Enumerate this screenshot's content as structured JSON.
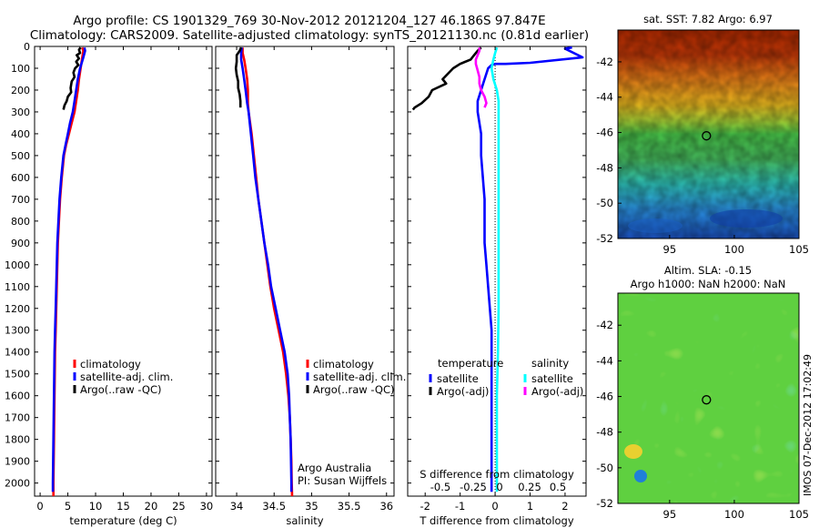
{
  "header": {
    "line1": "Argo profile: CS 1901329_769 30-Nov-2012 20121204_127 46.186S 97.847E",
    "line2": "Climatology: CARS2009. Satellite-adjusted climatology: synTS_20121130.nc (0.81d earlier)"
  },
  "side_caption": "IMOS 07-Dec-2012 17:02:49",
  "map_sst": {
    "title": "sat. SST: 7.82 Argo: 6.97",
    "xticks": [
      95,
      100,
      105
    ],
    "yticks": [
      -42,
      -44,
      -46,
      -48,
      -50,
      -52
    ],
    "xlim": [
      91,
      105
    ],
    "ylim": [
      -52,
      -40.2
    ],
    "float": {
      "lon": 97.847,
      "lat": -46.186
    },
    "colors": {
      "warm": "#b22a00",
      "orange": "#f08a1a",
      "yellow": "#f0d020",
      "green": "#49c84a",
      "cyan": "#2fc8c0",
      "blue": "#1a6fd8"
    }
  },
  "map_sla": {
    "title1": "Altim. SLA: -0.15",
    "title2": "Argo h1000: NaN h2000: NaN",
    "xticks": [
      95,
      100,
      105
    ],
    "yticks": [
      -42,
      -44,
      -46,
      -48,
      -50,
      -52
    ],
    "xlim": [
      91,
      105
    ],
    "ylim": [
      -52,
      -40.2
    ],
    "float": {
      "lon": 97.847,
      "lat": -46.186
    },
    "colors": {
      "green": "#5fd040",
      "yellow": "#e8e030",
      "cyan": "#38c8c0",
      "blue": "#2080d8"
    }
  },
  "chart_data": [
    {
      "type": "line",
      "name": "temperature",
      "xlabel": "temperature (deg C)",
      "xlim": [
        -1,
        31
      ],
      "ylim": [
        2060,
        0
      ],
      "xticks": [
        0,
        5,
        10,
        15,
        20,
        25,
        30
      ],
      "yticks": [
        0,
        100,
        200,
        300,
        400,
        500,
        600,
        700,
        800,
        900,
        1000,
        1100,
        1200,
        1300,
        1400,
        1500,
        1600,
        1700,
        1800,
        1900,
        2000
      ],
      "legend": [
        "climatology",
        "satellite-adj. clim.",
        "Argo(..raw -QC)"
      ],
      "series": [
        {
          "name": "climatology",
          "color": "#ff0000",
          "points": [
            [
              7.6,
              5
            ],
            [
              7.8,
              20
            ],
            [
              7.6,
              50
            ],
            [
              7.3,
              100
            ],
            [
              7.0,
              150
            ],
            [
              6.8,
              200
            ],
            [
              6.5,
              250
            ],
            [
              6.2,
              300
            ],
            [
              5.7,
              350
            ],
            [
              5.2,
              400
            ],
            [
              4.7,
              450
            ],
            [
              4.3,
              500
            ],
            [
              3.9,
              600
            ],
            [
              3.6,
              700
            ],
            [
              3.4,
              800
            ],
            [
              3.2,
              900
            ],
            [
              3.1,
              1000
            ],
            [
              3.0,
              1100
            ],
            [
              2.9,
              1200
            ],
            [
              2.8,
              1300
            ],
            [
              2.7,
              1400
            ],
            [
              2.65,
              1500
            ],
            [
              2.6,
              1600
            ],
            [
              2.55,
              1700
            ],
            [
              2.5,
              1800
            ],
            [
              2.45,
              1900
            ],
            [
              2.4,
              2000
            ],
            [
              2.4,
              2060
            ]
          ]
        },
        {
          "name": "satellite-adj. clim.",
          "color": "#0000ff",
          "points": [
            [
              8.0,
              5
            ],
            [
              8.1,
              20
            ],
            [
              7.8,
              50
            ],
            [
              7.2,
              100
            ],
            [
              6.8,
              150
            ],
            [
              6.5,
              200
            ],
            [
              6.2,
              250
            ],
            [
              5.9,
              300
            ],
            [
              5.4,
              350
            ],
            [
              5.0,
              400
            ],
            [
              4.6,
              450
            ],
            [
              4.2,
              500
            ],
            [
              3.8,
              600
            ],
            [
              3.5,
              700
            ],
            [
              3.3,
              800
            ],
            [
              3.1,
              900
            ],
            [
              3.0,
              1000
            ],
            [
              2.9,
              1100
            ],
            [
              2.8,
              1200
            ],
            [
              2.7,
              1300
            ],
            [
              2.6,
              1400
            ],
            [
              2.55,
              1500
            ],
            [
              2.5,
              1600
            ],
            [
              2.45,
              1700
            ],
            [
              2.4,
              1800
            ],
            [
              2.35,
              1900
            ],
            [
              2.3,
              2000
            ],
            [
              2.3,
              2040
            ]
          ]
        },
        {
          "name": "Argo(..raw -QC)",
          "color": "#000000",
          "points": [
            [
              7.3,
              5
            ],
            [
              7.0,
              15
            ],
            [
              7.2,
              30
            ],
            [
              6.6,
              40
            ],
            [
              7.0,
              55
            ],
            [
              6.5,
              70
            ],
            [
              6.9,
              85
            ],
            [
              6.3,
              100
            ],
            [
              6.0,
              120
            ],
            [
              6.2,
              140
            ],
            [
              5.7,
              160
            ],
            [
              5.5,
              190
            ],
            [
              5.6,
              210
            ],
            [
              5.0,
              230
            ],
            [
              4.8,
              250
            ],
            [
              4.4,
              270
            ],
            [
              4.2,
              290
            ]
          ]
        }
      ]
    },
    {
      "type": "line",
      "name": "salinity",
      "xlabel": "salinity",
      "xlim": [
        33.72,
        36.1
      ],
      "ylim": [
        2060,
        0
      ],
      "xticks": [
        34,
        34.5,
        35,
        35.5,
        36
      ],
      "legend": [
        "climatology",
        "satellite-adj. clim.",
        "Argo(..raw -QC)"
      ],
      "annotation": [
        "Argo Australia",
        "PI: Susan Wijffels"
      ],
      "series": [
        {
          "name": "climatology",
          "color": "#ff0000",
          "points": [
            [
              34.08,
              5
            ],
            [
              34.08,
              30
            ],
            [
              34.1,
              60
            ],
            [
              34.12,
              100
            ],
            [
              34.14,
              150
            ],
            [
              34.15,
              200
            ],
            [
              34.15,
              260
            ],
            [
              34.16,
              300
            ],
            [
              34.2,
              400
            ],
            [
              34.23,
              500
            ],
            [
              34.26,
              600
            ],
            [
              34.29,
              700
            ],
            [
              34.33,
              800
            ],
            [
              34.37,
              900
            ],
            [
              34.41,
              1000
            ],
            [
              34.45,
              1100
            ],
            [
              34.5,
              1200
            ],
            [
              34.56,
              1300
            ],
            [
              34.62,
              1400
            ],
            [
              34.66,
              1500
            ],
            [
              34.69,
              1600
            ],
            [
              34.71,
              1700
            ],
            [
              34.72,
              1800
            ],
            [
              34.73,
              1900
            ],
            [
              34.735,
              2000
            ],
            [
              34.74,
              2060
            ]
          ]
        },
        {
          "name": "satellite-adj. clim.",
          "color": "#0000ff",
          "points": [
            [
              34.07,
              5
            ],
            [
              34.06,
              30
            ],
            [
              34.06,
              60
            ],
            [
              34.08,
              100
            ],
            [
              34.1,
              150
            ],
            [
              34.12,
              200
            ],
            [
              34.14,
              260
            ],
            [
              34.16,
              300
            ],
            [
              34.19,
              400
            ],
            [
              34.22,
              500
            ],
            [
              34.25,
              600
            ],
            [
              34.29,
              700
            ],
            [
              34.33,
              800
            ],
            [
              34.37,
              900
            ],
            [
              34.42,
              1000
            ],
            [
              34.46,
              1100
            ],
            [
              34.52,
              1200
            ],
            [
              34.58,
              1300
            ],
            [
              34.64,
              1400
            ],
            [
              34.68,
              1500
            ],
            [
              34.7,
              1600
            ],
            [
              34.71,
              1700
            ],
            [
              34.72,
              1800
            ],
            [
              34.725,
              1900
            ],
            [
              34.73,
              2000
            ],
            [
              34.73,
              2040
            ]
          ]
        },
        {
          "name": "Argo(..raw -QC)",
          "color": "#000000",
          "points": [
            [
              34.06,
              5
            ],
            [
              34.04,
              20
            ],
            [
              34.0,
              40
            ],
            [
              34.0,
              70
            ],
            [
              33.99,
              100
            ],
            [
              34.0,
              130
            ],
            [
              34.02,
              160
            ],
            [
              34.02,
              190
            ],
            [
              34.04,
              220
            ],
            [
              34.05,
              250
            ],
            [
              34.05,
              280
            ]
          ]
        }
      ]
    },
    {
      "type": "line",
      "name": "difference",
      "xlabel": "T difference from climatology",
      "xlabel_top": "S difference from climatology",
      "xlim": [
        -2.5,
        2.6
      ],
      "ylim": [
        2060,
        0
      ],
      "xticks": [
        -2,
        -1,
        0,
        1,
        2
      ],
      "xticks_salinity": [
        "-0.5",
        "-0.25",
        "0",
        "0.25",
        "0.5"
      ],
      "legend_temperature_title": "temperature",
      "legend_salinity_title": "salinity",
      "legend_temperature": [
        "satellite",
        "Argo(-adj)"
      ],
      "legend_salinity": [
        "satellite",
        "Argo(-adj)"
      ],
      "series": [
        {
          "name": "temperature satellite",
          "color": "#0000ff",
          "points": [
            [
              2.2,
              5
            ],
            [
              2.0,
              10
            ],
            [
              2.5,
              50
            ],
            [
              1.0,
              75
            ],
            [
              0.3,
              80
            ],
            [
              0.0,
              80
            ],
            [
              -0.1,
              85
            ],
            [
              -0.2,
              100
            ],
            [
              -0.3,
              150
            ],
            [
              -0.4,
              200
            ],
            [
              -0.5,
              250
            ],
            [
              -0.5,
              300
            ],
            [
              -0.4,
              400
            ],
            [
              -0.4,
              500
            ],
            [
              -0.35,
              600
            ],
            [
              -0.3,
              700
            ],
            [
              -0.3,
              800
            ],
            [
              -0.3,
              900
            ],
            [
              -0.25,
              1000
            ],
            [
              -0.2,
              1100
            ],
            [
              -0.15,
              1200
            ],
            [
              -0.1,
              1300
            ],
            [
              -0.1,
              1400
            ],
            [
              -0.1,
              1500
            ],
            [
              -0.1,
              1700
            ],
            [
              -0.1,
              1900
            ],
            [
              -0.1,
              2040
            ]
          ]
        },
        {
          "name": "temperature Argo(-adj)",
          "color": "#000000",
          "points": [
            [
              -0.4,
              5
            ],
            [
              -0.5,
              20
            ],
            [
              -0.6,
              40
            ],
            [
              -0.7,
              60
            ],
            [
              -1.0,
              80
            ],
            [
              -1.2,
              100
            ],
            [
              -1.5,
              150
            ],
            [
              -1.4,
              170
            ],
            [
              -1.8,
              200
            ],
            [
              -1.9,
              230
            ],
            [
              -2.1,
              260
            ],
            [
              -2.3,
              280
            ],
            [
              -2.35,
              290
            ]
          ]
        },
        {
          "name": "salinity satellite",
          "color": "#00ffff",
          "points": [
            [
              0.05,
              5
            ],
            [
              0.0,
              30
            ],
            [
              -0.05,
              60
            ],
            [
              -0.1,
              100
            ],
            [
              -0.05,
              150
            ],
            [
              0.05,
              200
            ],
            [
              0.1,
              250
            ],
            [
              0.1,
              300
            ],
            [
              0.1,
              400
            ],
            [
              0.1,
              600
            ],
            [
              0.1,
              800
            ],
            [
              0.1,
              1000
            ],
            [
              0.1,
              1200
            ],
            [
              0.08,
              1400
            ],
            [
              0.05,
              1600
            ],
            [
              0.05,
              1800
            ],
            [
              0.05,
              2000
            ],
            [
              0.05,
              2040
            ]
          ]
        },
        {
          "name": "salinity Argo(-adj)",
          "color": "#ff00ff",
          "points": [
            [
              -0.45,
              5
            ],
            [
              -0.45,
              20
            ],
            [
              -0.5,
              40
            ],
            [
              -0.55,
              60
            ],
            [
              -0.55,
              80
            ],
            [
              -0.5,
              110
            ],
            [
              -0.45,
              140
            ],
            [
              -0.45,
              170
            ],
            [
              -0.4,
              200
            ],
            [
              -0.3,
              230
            ],
            [
              -0.25,
              260
            ],
            [
              -0.3,
              280
            ]
          ]
        }
      ]
    }
  ]
}
